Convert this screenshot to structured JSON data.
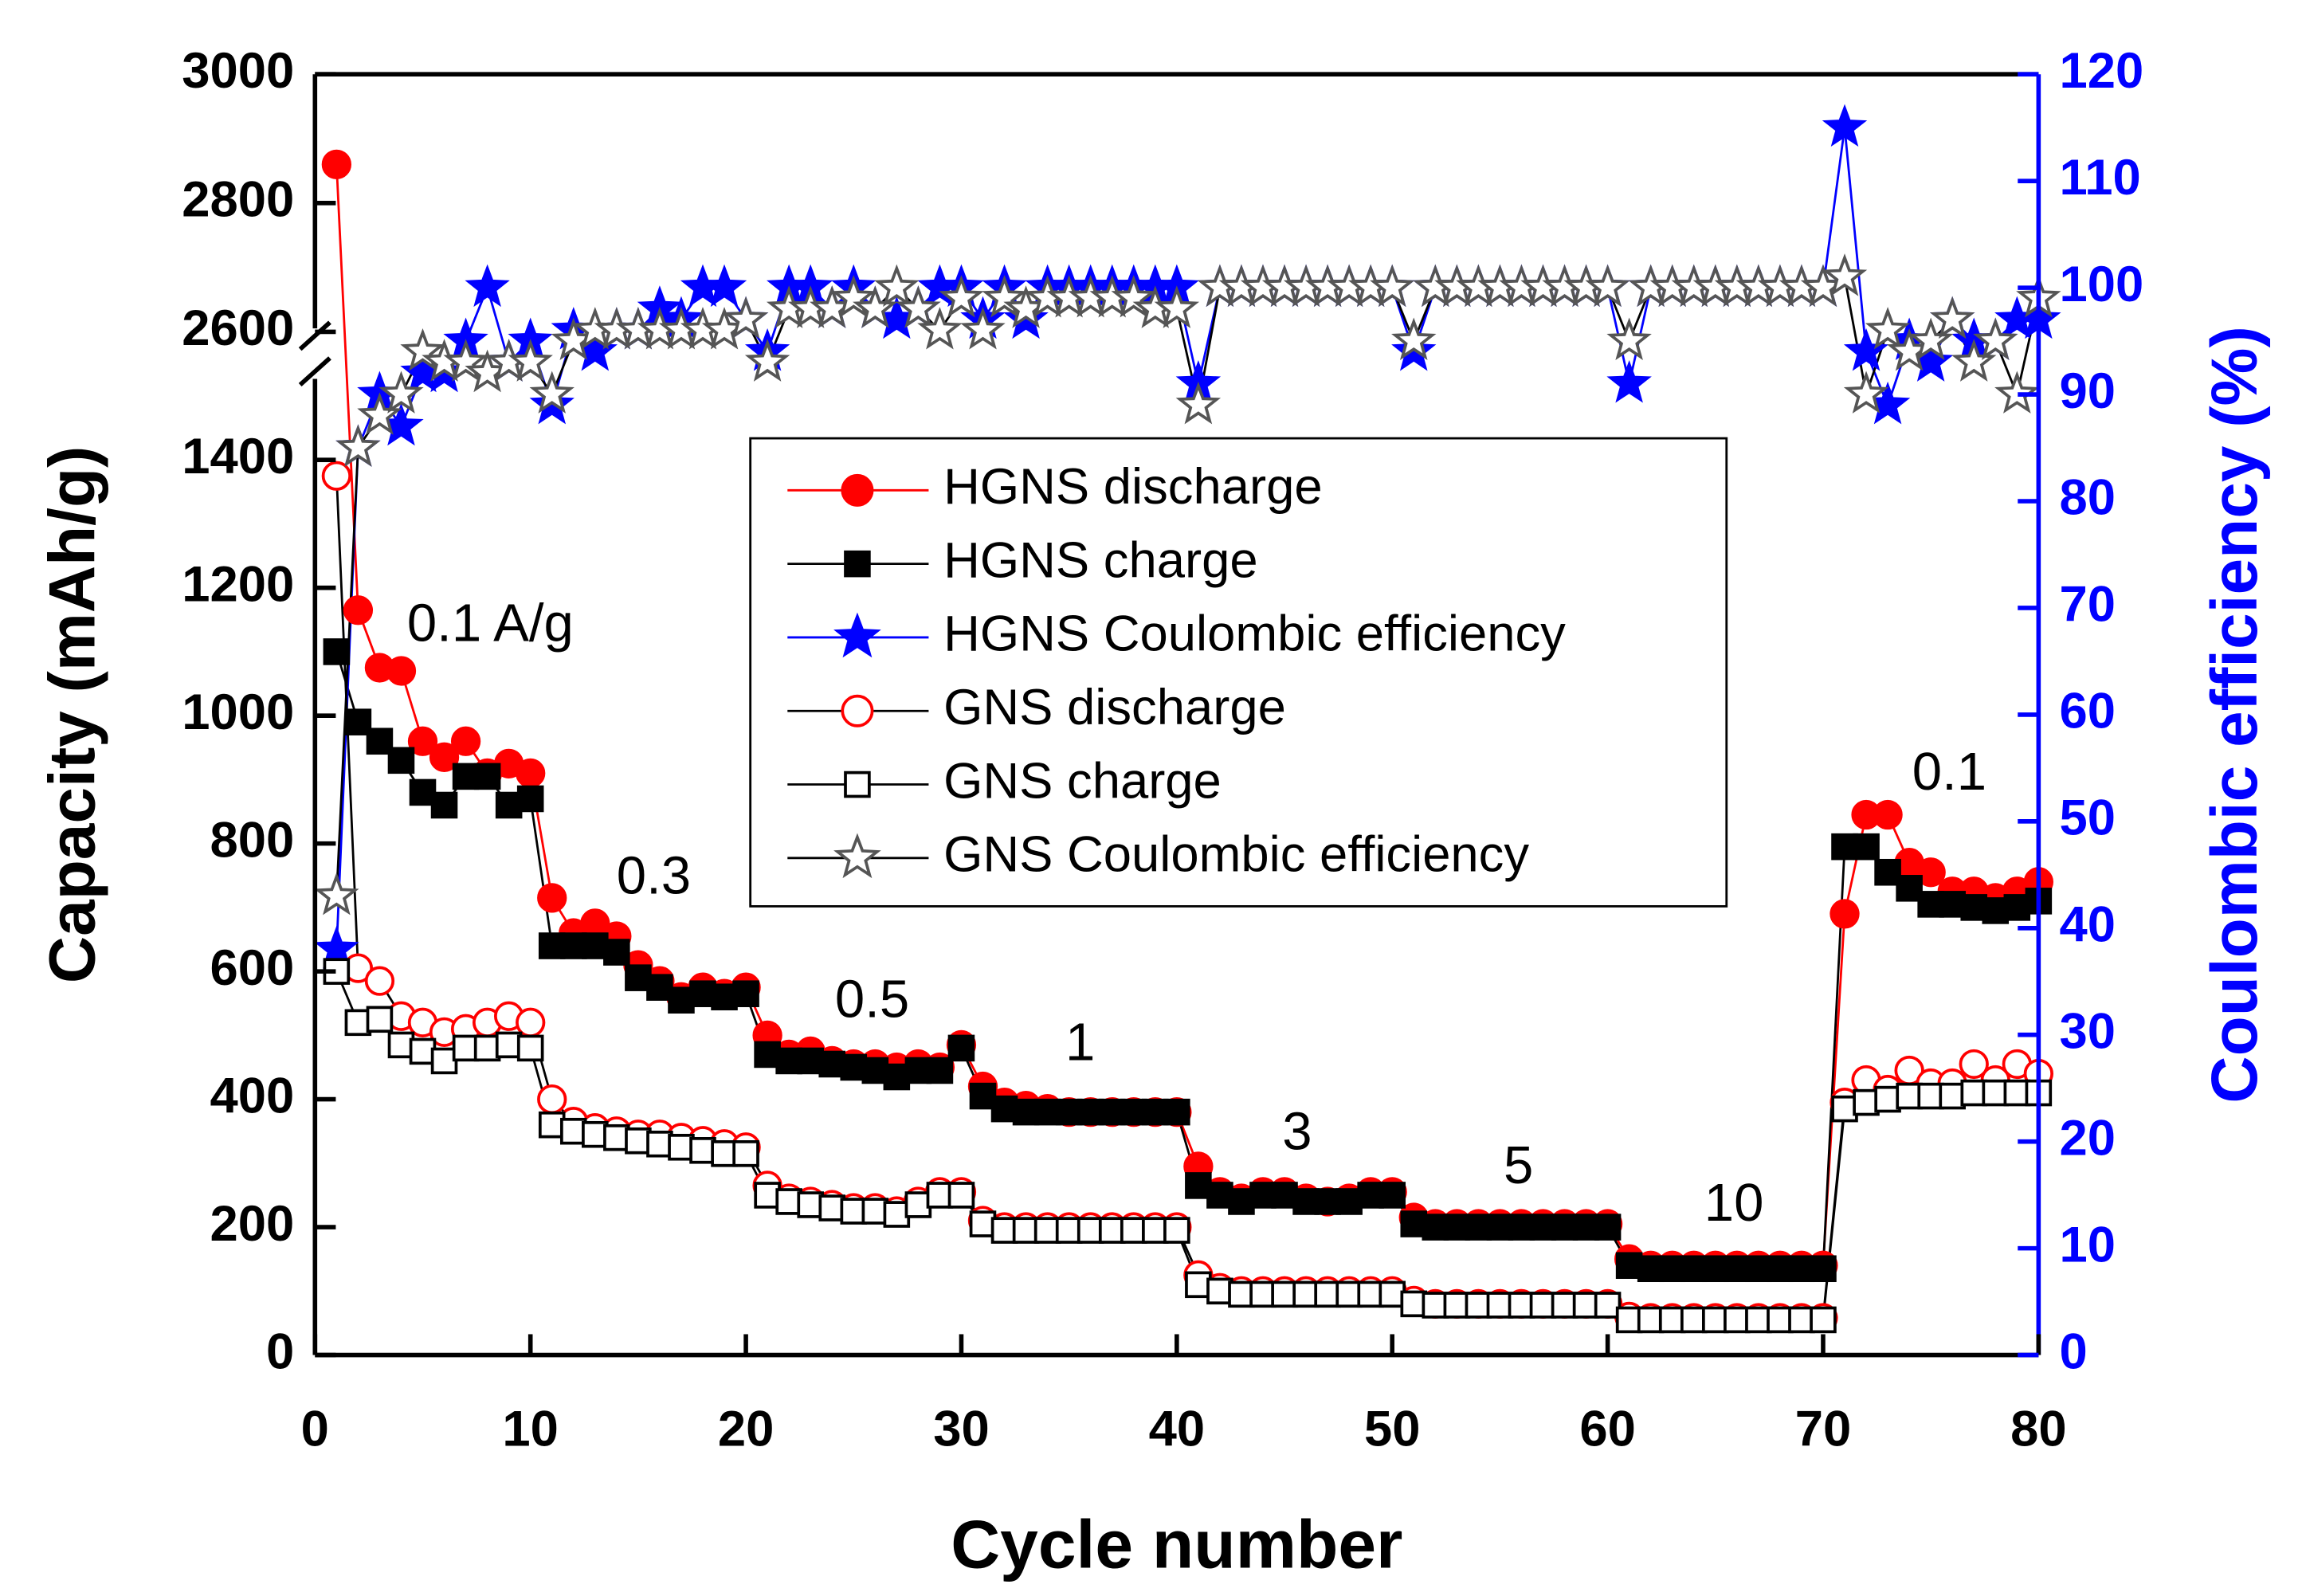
{
  "chart_data": {
    "type": "line",
    "xlabel": "Cycle number",
    "ylabel": "Capacity (mAh/g)",
    "y2label": "Coulombic efficiency (%)",
    "y2color": "#0000ff",
    "legend": "center",
    "xlim": [
      0,
      80
    ],
    "xticks": [
      0,
      10,
      20,
      30,
      40,
      50,
      60,
      70,
      80
    ],
    "ylim": [
      0,
      3000
    ],
    "ybreak": [
      1550,
      2550
    ],
    "yticks": [
      0,
      200,
      400,
      600,
      800,
      1000,
      1200,
      1400,
      2600,
      2800,
      3000
    ],
    "y2lim": [
      0,
      120
    ],
    "y2ticks": [
      0,
      10,
      20,
      30,
      40,
      50,
      60,
      70,
      80,
      90,
      100,
      110,
      120
    ],
    "annotations": [
      "0.1 A/g",
      "0.3",
      "0.5",
      "1",
      "3",
      "5",
      "10",
      "0.1"
    ],
    "x": [
      1,
      2,
      3,
      4,
      5,
      6,
      7,
      8,
      9,
      10,
      11,
      12,
      13,
      14,
      15,
      16,
      17,
      18,
      19,
      20,
      21,
      22,
      23,
      24,
      25,
      26,
      27,
      28,
      29,
      30,
      31,
      32,
      33,
      34,
      35,
      36,
      37,
      38,
      39,
      40,
      41,
      42,
      43,
      44,
      45,
      46,
      47,
      48,
      49,
      50,
      51,
      52,
      53,
      54,
      55,
      56,
      57,
      58,
      59,
      60,
      61,
      62,
      63,
      64,
      65,
      66,
      67,
      68,
      69,
      70,
      71,
      72,
      73,
      74,
      75,
      76,
      77,
      78,
      79,
      80
    ],
    "series": [
      {
        "name": "HGNS discharge",
        "color": "#ff0000",
        "line_color": "#ff0000",
        "marker": "circle",
        "filled": true,
        "values": [
          2860,
          1165,
          1075,
          1070,
          960,
          935,
          960,
          910,
          925,
          910,
          715,
          660,
          675,
          655,
          610,
          585,
          560,
          575,
          565,
          575,
          500,
          470,
          475,
          460,
          455,
          455,
          450,
          455,
          450,
          485,
          420,
          395,
          390,
          385,
          380,
          380,
          380,
          380,
          380,
          380,
          295,
          255,
          245,
          255,
          255,
          245,
          240,
          245,
          255,
          255,
          215,
          205,
          205,
          205,
          205,
          205,
          205,
          205,
          205,
          205,
          150,
          140,
          140,
          140,
          140,
          140,
          140,
          140,
          140,
          140,
          690,
          845,
          845,
          770,
          755,
          725,
          725,
          715,
          725,
          740
        ]
      },
      {
        "name": "HGNS charge",
        "color": "#000000",
        "line_color": "#000000",
        "marker": "square",
        "filled": true,
        "values": [
          1100,
          990,
          960,
          930,
          880,
          860,
          905,
          905,
          860,
          870,
          640,
          640,
          640,
          630,
          590,
          575,
          555,
          565,
          560,
          565,
          470,
          460,
          460,
          455,
          450,
          445,
          435,
          445,
          445,
          480,
          405,
          385,
          380,
          380,
          380,
          380,
          380,
          380,
          380,
          380,
          265,
          250,
          240,
          250,
          250,
          240,
          240,
          240,
          250,
          250,
          205,
          200,
          200,
          200,
          200,
          200,
          200,
          200,
          200,
          200,
          140,
          135,
          135,
          135,
          135,
          135,
          135,
          135,
          135,
          135,
          795,
          795,
          755,
          730,
          705,
          705,
          700,
          695,
          700,
          710
        ]
      },
      {
        "name": "HGNS Coulombic efficiency",
        "color": "#0000ff",
        "line_color": "#0000ff",
        "marker": "star",
        "filled": true,
        "axis": "y2",
        "values": [
          38,
          85,
          90,
          87,
          92,
          92,
          95,
          100,
          93,
          95,
          89,
          96,
          94,
          96,
          96,
          98,
          97,
          100,
          100,
          97,
          94,
          100,
          100,
          98,
          100,
          98,
          97,
          98,
          100,
          100,
          97,
          100,
          97,
          100,
          100,
          100,
          100,
          100,
          100,
          100,
          91,
          100,
          100,
          100,
          100,
          100,
          100,
          100,
          100,
          100,
          94,
          100,
          100,
          100,
          100,
          100,
          100,
          100,
          100,
          100,
          91,
          100,
          100,
          100,
          100,
          100,
          100,
          100,
          100,
          100,
          115,
          94,
          89,
          95,
          93,
          97,
          95,
          95,
          97,
          97
        ]
      },
      {
        "name": "GNS discharge",
        "color": "#ff0000",
        "line_color": "#000000",
        "marker": "circle",
        "filled": false,
        "values": [
          1375,
          605,
          585,
          530,
          520,
          505,
          510,
          520,
          530,
          520,
          400,
          365,
          355,
          350,
          345,
          345,
          340,
          335,
          330,
          325,
          265,
          245,
          240,
          235,
          230,
          230,
          225,
          240,
          255,
          255,
          210,
          200,
          200,
          200,
          200,
          200,
          200,
          200,
          200,
          200,
          125,
          105,
          100,
          100,
          100,
          100,
          100,
          100,
          100,
          100,
          85,
          80,
          80,
          80,
          80,
          80,
          80,
          80,
          80,
          80,
          60,
          58,
          58,
          58,
          58,
          58,
          58,
          58,
          58,
          58,
          395,
          430,
          415,
          445,
          425,
          425,
          455,
          430,
          455,
          440
        ]
      },
      {
        "name": "GNS charge",
        "color": "#000000",
        "line_color": "#000000",
        "marker": "square",
        "filled": false,
        "values": [
          600,
          520,
          525,
          485,
          475,
          460,
          480,
          480,
          485,
          480,
          360,
          350,
          345,
          340,
          335,
          330,
          325,
          320,
          315,
          315,
          250,
          240,
          235,
          230,
          225,
          225,
          220,
          235,
          250,
          250,
          205,
          195,
          195,
          195,
          195,
          195,
          195,
          195,
          195,
          195,
          110,
          100,
          95,
          95,
          95,
          95,
          95,
          95,
          95,
          95,
          80,
          78,
          78,
          78,
          78,
          78,
          78,
          78,
          78,
          78,
          55,
          55,
          55,
          55,
          55,
          55,
          55,
          55,
          55,
          55,
          385,
          395,
          400,
          405,
          405,
          405,
          410,
          410,
          410,
          410
        ]
      },
      {
        "name": "GNS Coulombic efficiency",
        "color": "#555555",
        "line_color": "#000000",
        "marker": "star",
        "filled": false,
        "axis": "y2",
        "values": [
          43,
          85,
          88,
          90,
          94,
          93,
          93,
          92,
          93,
          93,
          90,
          95,
          96,
          96,
          96,
          96,
          96,
          96,
          96,
          97,
          93,
          98,
          98,
          98,
          99,
          98,
          100,
          98,
          96,
          99,
          96,
          99,
          98,
          99,
          99,
          99,
          99,
          99,
          98,
          98,
          89,
          100,
          100,
          100,
          100,
          100,
          100,
          100,
          100,
          100,
          95,
          100,
          100,
          100,
          100,
          100,
          100,
          100,
          100,
          100,
          95,
          100,
          100,
          100,
          100,
          100,
          100,
          100,
          100,
          100,
          101,
          90,
          96,
          94,
          95,
          97,
          93,
          95,
          90,
          99
        ]
      }
    ]
  }
}
